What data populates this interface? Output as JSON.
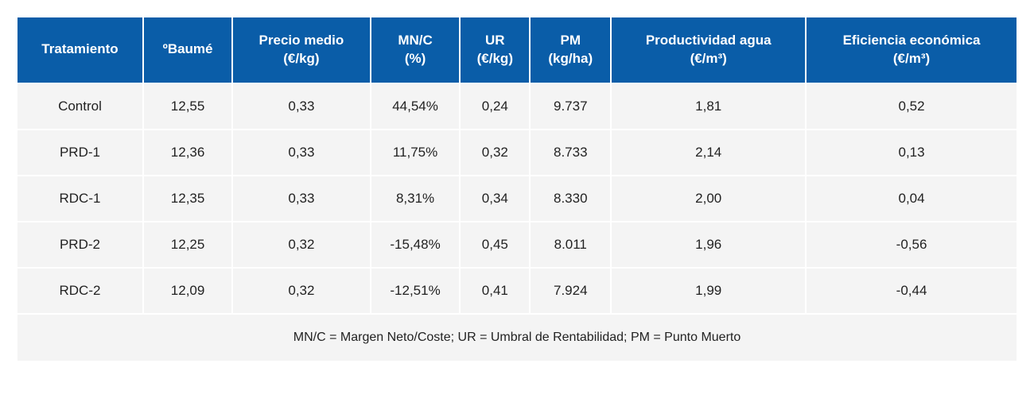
{
  "table": {
    "header_bg": "#0a5da8",
    "header_fg": "#ffffff",
    "cell_bg": "#f4f4f4",
    "cell_fg": "#222222",
    "columns": [
      "Tratamiento",
      "ºBaumé",
      "Precio medio\n(€/kg)",
      "MN/C\n(%)",
      "UR\n(€/kg)",
      "PM\n(kg/ha)",
      "Productividad agua\n(€/m³)",
      "Eficiencia económica\n(€/m³)"
    ],
    "rows": [
      [
        "Control",
        "12,55",
        "0,33",
        "44,54%",
        "0,24",
        "9.737",
        "1,81",
        "0,52"
      ],
      [
        "PRD-1",
        "12,36",
        "0,33",
        "11,75%",
        "0,32",
        "8.733",
        "2,14",
        "0,13"
      ],
      [
        "RDC-1",
        "12,35",
        "0,33",
        "8,31%",
        "0,34",
        "8.330",
        "2,00",
        "0,04"
      ],
      [
        "PRD-2",
        "12,25",
        "0,32",
        "-15,48%",
        "0,45",
        "8.011",
        "1,96",
        "-0,56"
      ],
      [
        "RDC-2",
        "12,09",
        "0,32",
        "-12,51%",
        "0,41",
        "7.924",
        "1,99",
        "-0,44"
      ]
    ],
    "footnote": "MN/C = Margen Neto/Coste; UR = Umbral de Rentabilidad; PM = Punto Muerto"
  }
}
